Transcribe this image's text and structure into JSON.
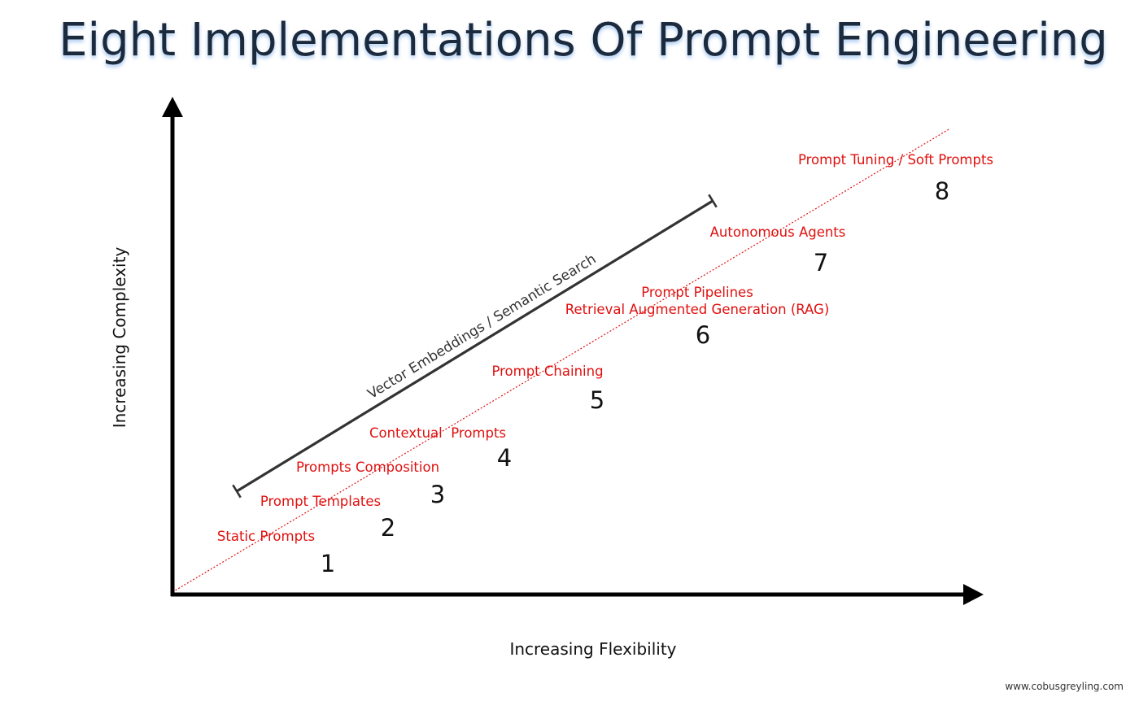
{
  "title": "Eight Implementations Of Prompt Engineering",
  "axes": {
    "x_label": "Increasing Flexibility",
    "y_label": "Increasing Complexity"
  },
  "trend_line_color": "#e0100f",
  "implementations": [
    {
      "number": "1",
      "lines": [
        "Static Prompts"
      ]
    },
    {
      "number": "2",
      "lines": [
        "Prompt Templates"
      ]
    },
    {
      "number": "3",
      "lines": [
        "Prompts Composition"
      ]
    },
    {
      "number": "4",
      "lines": [
        "Contextual  Prompts"
      ]
    },
    {
      "number": "5",
      "lines": [
        "Prompt Chaining"
      ]
    },
    {
      "number": "6",
      "lines": [
        "Prompt Pipelines",
        "Retrieval Augmented Generation (RAG)"
      ]
    },
    {
      "number": "7",
      "lines": [
        "Autonomous Agents"
      ]
    },
    {
      "number": "8",
      "lines": [
        "Prompt Tuning / Soft Prompts"
      ]
    }
  ],
  "span_bar": {
    "label": "Vector Embeddings / Semantic Search",
    "color": "#333333"
  },
  "credit": "www.cobusgreyling.com"
}
